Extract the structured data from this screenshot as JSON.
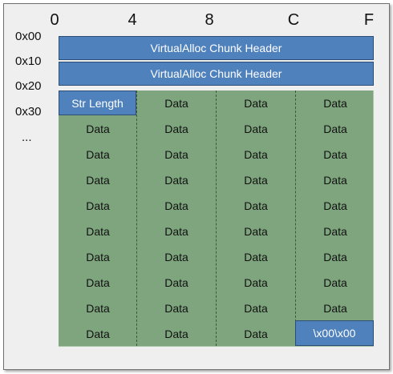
{
  "columns": [
    "0",
    "4",
    "8",
    "C",
    "F"
  ],
  "rows": [
    "0x00",
    "0x10",
    "0x20",
    "0x30",
    "..."
  ],
  "headers": [
    "VirtualAlloc Chunk Header",
    "VirtualAlloc Chunk Header"
  ],
  "str_length": "Str Length",
  "data_label": "Data",
  "terminator": "\\x00\\x00",
  "colors": {
    "header_blue": "#4f81bd",
    "data_green": "#7ea57e",
    "background": "#efefef"
  }
}
